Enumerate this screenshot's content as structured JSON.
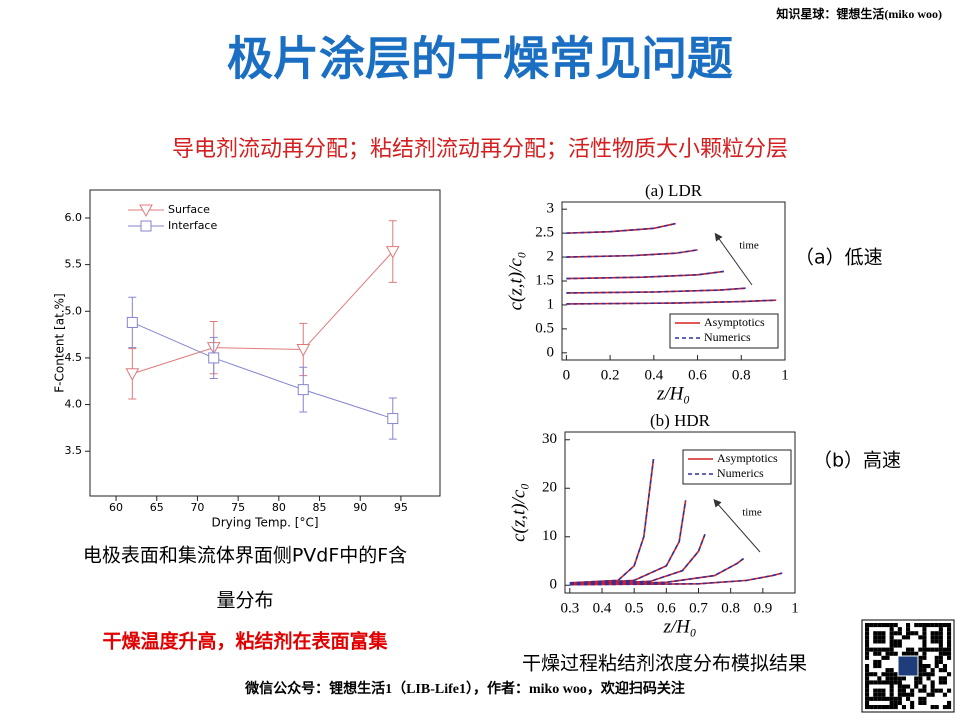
{
  "header": {
    "watermark": "知识星球：锂想生活(miko woo)",
    "title": "极片涂层的干燥常见问题",
    "subtitle": "导电剂流动再分配；粘结剂流动再分配；活性物质大小颗粒分层"
  },
  "left": {
    "caption_line1": "电极表面和集流体界面侧PVdF中的F含",
    "caption_line2": "量分布",
    "conclusion": "干燥温度升高，粘结剂在表面富集"
  },
  "right": {
    "label_a": "（a）低速",
    "label_b": "（b）高速",
    "caption": "干燥过程粘结剂浓度分布模拟结果"
  },
  "footer": "微信公众号：锂想生活1（LIB-Life1），作者：miko woo，欢迎扫码关注",
  "chart_data": [
    {
      "type": "line",
      "x_label": "Drying Temp. [°C]",
      "y_label": "F-Content [at.%]",
      "x": [
        62,
        72,
        83,
        94
      ],
      "series": [
        {
          "name": "Surface",
          "color": "#e07a7a",
          "marker": "triangle-down",
          "values": [
            4.33,
            4.61,
            4.59,
            5.64
          ],
          "errors": [
            0.27,
            0.28,
            0.28,
            0.33
          ]
        },
        {
          "name": "Interface",
          "color": "#8585d0",
          "marker": "square",
          "values": [
            4.88,
            4.5,
            4.16,
            3.85
          ],
          "errors": [
            0.27,
            0.22,
            0.24,
            0.22
          ]
        }
      ],
      "xlim": [
        56.8,
        99.8
      ],
      "ylim": [
        3.02,
        6.3
      ],
      "xticks": [
        60,
        65,
        70,
        75,
        80,
        85,
        90,
        95
      ],
      "yticks": [
        3.5,
        {
          "value": 4,
          "label": "4.0"
        },
        4.5,
        {
          "value": 5,
          "label": "5.0"
        },
        5.5,
        {
          "value": 6,
          "label": "6.0"
        }
      ],
      "legend": "upper-left"
    },
    {
      "type": "line",
      "title": "(a) LDR",
      "x_label": "z/H₀",
      "y_label": "c(z,t)/c₀",
      "annotation": "time",
      "x": [
        0,
        0.2,
        0.4,
        0.5,
        null,
        0,
        0.3,
        0.5,
        0.6,
        null,
        0,
        0.35,
        0.6,
        0.72,
        null,
        0,
        0.4,
        0.7,
        0.82,
        null,
        0,
        0.5,
        0.8,
        0.96
      ],
      "series": [
        {
          "name": "Asymptotics",
          "color": "#d42020",
          "dash": false,
          "values": [
            2.5,
            2.53,
            2.6,
            2.7,
            null,
            2.0,
            2.03,
            2.08,
            2.15,
            null,
            1.55,
            1.58,
            1.63,
            1.7,
            null,
            1.25,
            1.27,
            1.31,
            1.35,
            null,
            1.02,
            1.04,
            1.07,
            1.1
          ]
        },
        {
          "name": "Numerics",
          "color": "#3030a0",
          "dash": true,
          "values": [
            2.5,
            2.53,
            2.6,
            2.7,
            null,
            2.0,
            2.03,
            2.08,
            2.15,
            null,
            1.55,
            1.58,
            1.63,
            1.7,
            null,
            1.25,
            1.27,
            1.31,
            1.35,
            null,
            1.02,
            1.04,
            1.07,
            1.1
          ]
        }
      ],
      "xlim": [
        -0.02,
        1.0
      ],
      "ylim": [
        -0.15,
        3.15
      ],
      "xticks": [
        0,
        0.2,
        0.4,
        0.6,
        0.8,
        1
      ],
      "yticks": [
        0,
        0.5,
        1,
        1.5,
        2,
        2.5,
        3
      ],
      "legend": "lower-right"
    },
    {
      "type": "line",
      "title": "(b) HDR",
      "x_label": "z/H₀",
      "y_label": "c(z,t)/c₀",
      "annotation": "time",
      "x": [
        0.3,
        0.45,
        0.5,
        0.53,
        0.56,
        null,
        0.3,
        0.5,
        0.6,
        0.64,
        0.66,
        null,
        0.3,
        0.55,
        0.65,
        0.7,
        0.72,
        null,
        0.3,
        0.6,
        0.75,
        0.82,
        0.84,
        null,
        0.3,
        0.7,
        0.85,
        0.93,
        0.96
      ],
      "series": [
        {
          "name": "Asymptotics",
          "color": "#d42020",
          "dash": false,
          "values": [
            0.5,
            1,
            4,
            10,
            26,
            null,
            0.3,
            1,
            4,
            9,
            17.5,
            null,
            0.2,
            0.8,
            3,
            7,
            10.5,
            null,
            0.1,
            0.6,
            2,
            4.5,
            5.5,
            null,
            0.1,
            0.3,
            1,
            2,
            2.5
          ]
        },
        {
          "name": "Numerics",
          "color": "#3030a0",
          "dash": true,
          "values": [
            0.5,
            1,
            4,
            10,
            26,
            null,
            0.3,
            1,
            4,
            9,
            17.5,
            null,
            0.2,
            0.8,
            3,
            7,
            10.5,
            null,
            0.1,
            0.6,
            2,
            4.5,
            5.5,
            null,
            0.1,
            0.3,
            1,
            2,
            2.5
          ]
        }
      ],
      "xlim": [
        0.285,
        1.0
      ],
      "ylim": [
        -1.6,
        31.6
      ],
      "xticks": [
        0.3,
        0.4,
        0.5,
        0.6,
        0.7,
        0.8,
        0.9,
        1
      ],
      "yticks": [
        0,
        10,
        20,
        30
      ],
      "legend": "upper-right"
    }
  ]
}
